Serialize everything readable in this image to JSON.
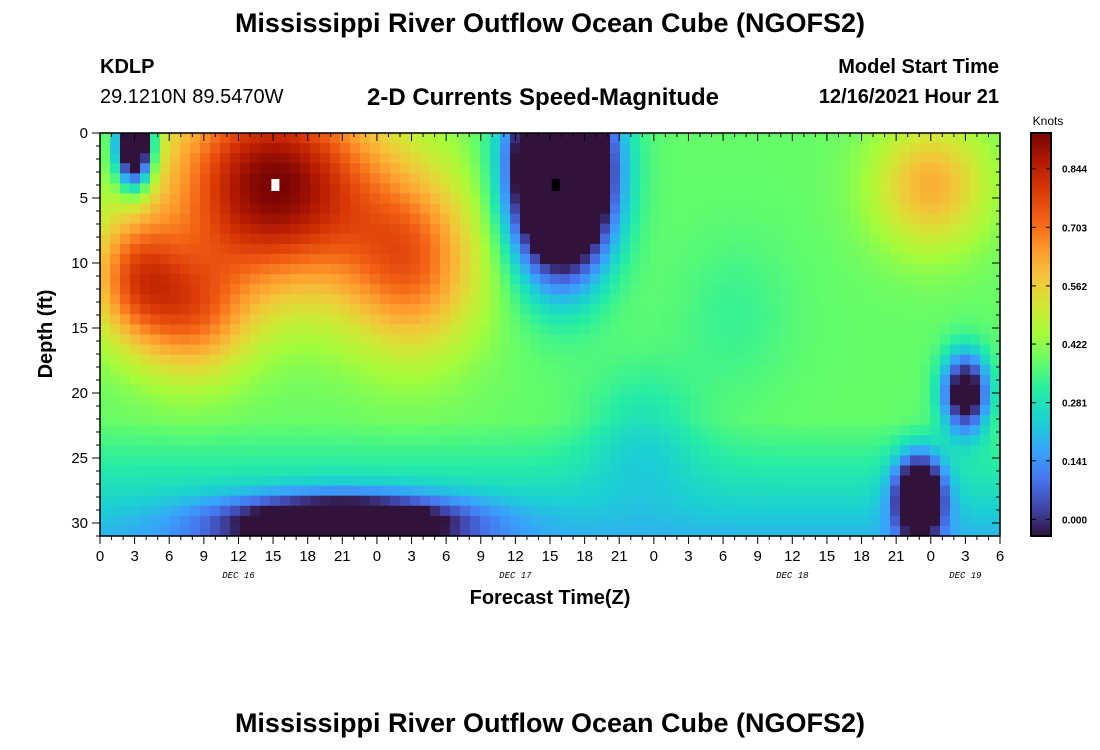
{
  "header": {
    "title": "Mississippi River Outflow Ocean Cube (NGOFS2)",
    "station": "KDLP",
    "coordinates": "29.1210N  89.5470W",
    "subtitle": "2-D Currents Speed-Magnitude",
    "model_start_label": "Model Start Time",
    "model_start_value": "12/16/2021 Hour 21"
  },
  "footer": {
    "title": "Mississippi River Outflow Ocean Cube (NGOFS2)"
  },
  "chart_data": {
    "type": "heatmap",
    "title": "2-D Currents Speed-Magnitude",
    "xlabel": "Forecast Time(Z)",
    "ylabel": "Depth (ft)",
    "x_hours_range": [
      0,
      78
    ],
    "x_tick_step_hours": 3,
    "x_tick_labels": [
      "0",
      "3",
      "6",
      "9",
      "12",
      "15",
      "18",
      "21",
      "0",
      "3",
      "6",
      "9",
      "12",
      "15",
      "18",
      "21",
      "0",
      "3",
      "6",
      "9",
      "12",
      "15",
      "18",
      "21",
      "0",
      "3",
      "6"
    ],
    "date_labels": [
      {
        "text": "DEC 16",
        "hour": 12
      },
      {
        "text": "DEC 17",
        "hour": 36
      },
      {
        "text": "DEC 18",
        "hour": 60
      },
      {
        "text": "DEC 19",
        "hour": 75
      }
    ],
    "ylim": [
      0,
      31
    ],
    "y_ticks": [
      0,
      5,
      10,
      15,
      20,
      25,
      30
    ],
    "colorbar": {
      "unit": "Knots",
      "range": [
        -0.04,
        0.93
      ],
      "ticks": [
        "0.000",
        "0.141",
        "0.281",
        "0.422",
        "0.562",
        "0.703",
        "0.844"
      ]
    },
    "markers": [
      {
        "kind": "max",
        "color": "#ffffff",
        "hour": 15.2,
        "depth": 4
      },
      {
        "kind": "min",
        "color": "#000000",
        "hour": 39.5,
        "depth": 4
      }
    ],
    "field_features": [
      {
        "hour": 15,
        "depth": 4,
        "speed": 0.93,
        "hour_spread": 9,
        "depth_spread": 8
      },
      {
        "hour": 3,
        "depth": 11,
        "speed": 0.68,
        "hour_spread": 4,
        "depth_spread": 5
      },
      {
        "hour": 8,
        "depth": 14,
        "speed": 0.66,
        "hour_spread": 5,
        "depth_spread": 5
      },
      {
        "hour": 27,
        "depth": 10,
        "speed": 0.7,
        "hour_spread": 6,
        "depth_spread": 7
      },
      {
        "hour": 40,
        "depth": 3,
        "speed": -0.85,
        "hour_spread": 4,
        "depth_spread": 7
      },
      {
        "hour": 55,
        "depth": 14,
        "speed": 0.33,
        "hour_spread": 5,
        "depth_spread": 6
      },
      {
        "hour": 47,
        "depth": 23,
        "speed": 0.28,
        "hour_spread": 5,
        "depth_spread": 5
      },
      {
        "hour": 3,
        "depth": 1,
        "speed": -0.4,
        "hour_spread": 1.5,
        "depth_spread": 3
      },
      {
        "hour": 21,
        "depth": 30,
        "speed": -0.2,
        "hour_spread": 10,
        "depth_spread": 2
      },
      {
        "hour": 72,
        "depth": 4,
        "speed": 0.62,
        "hour_spread": 5,
        "depth_spread": 5
      },
      {
        "hour": 71,
        "depth": 28,
        "speed": -0.3,
        "hour_spread": 2,
        "depth_spread": 3
      },
      {
        "hour": 75,
        "depth": 20,
        "speed": -0.15,
        "hour_spread": 2,
        "depth_spread": 3
      }
    ]
  }
}
